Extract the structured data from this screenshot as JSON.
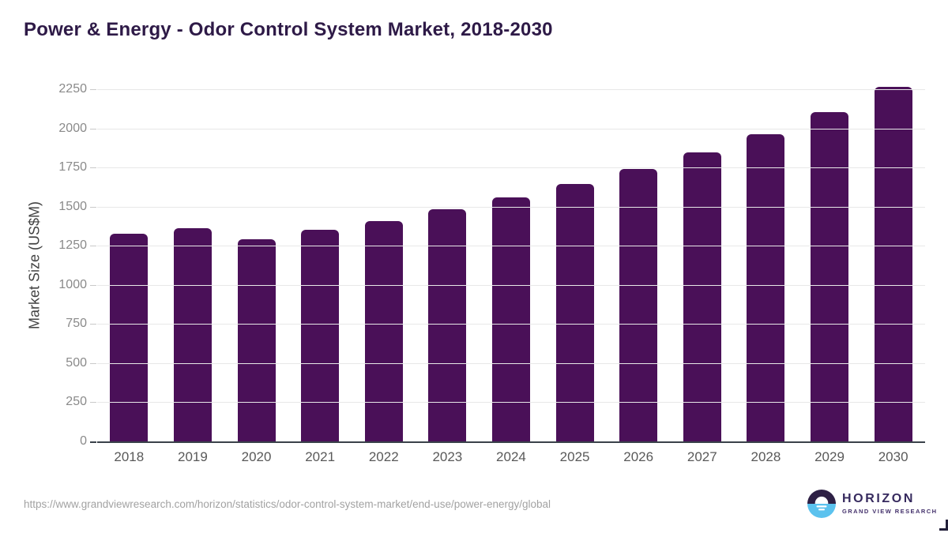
{
  "header": {
    "title": "Power & Energy - Odor Control System Market, 2018-2030"
  },
  "chart_data": {
    "type": "bar",
    "title": "Power & Energy - Odor Control System Market, 2018-2030",
    "categories": [
      "2018",
      "2019",
      "2020",
      "2021",
      "2022",
      "2023",
      "2024",
      "2025",
      "2026",
      "2027",
      "2028",
      "2029",
      "2030"
    ],
    "values": [
      1325,
      1360,
      1290,
      1350,
      1410,
      1485,
      1560,
      1645,
      1740,
      1845,
      1965,
      2105,
      2265
    ],
    "xlabel": "",
    "ylabel": "Market Size (US$M)",
    "ylim": [
      0,
      2250
    ],
    "yticks": [
      0,
      250,
      500,
      750,
      1000,
      1250,
      1500,
      1750,
      2000,
      2250
    ],
    "grid": true,
    "legend": false,
    "bar_color": "#4a1058"
  },
  "footer": {
    "source_url": "https://www.grandviewresearch.com/horizon/statistics/odor-control-system-market/end-use/power-energy/global",
    "logo": {
      "name": "HORIZON",
      "tagline": "GRAND VIEW RESEARCH",
      "circle_top_color": "#2e2045",
      "circle_bottom_color": "#5bc2ee"
    }
  }
}
